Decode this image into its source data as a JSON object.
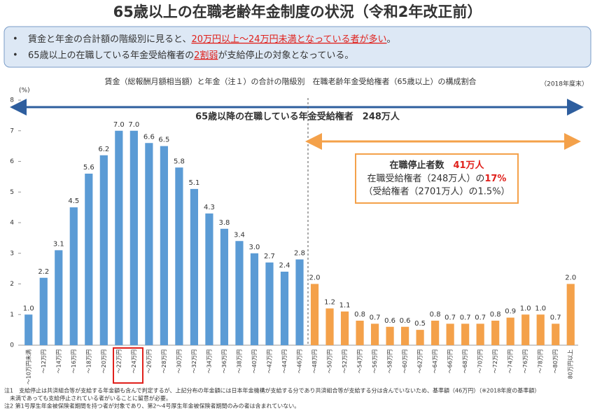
{
  "chart_data": {
    "type": "bar",
    "title": "65歳以上の在職老齢年金制度の状況（令和2年改正前）",
    "bullets": [
      [
        "賃金と年金の合計額の階級別に見ると、",
        "20万円以上～24万円未満となっている者が多い",
        "。"
      ],
      [
        "65歳以上の在職している年金受給権者の",
        "2割弱",
        "が支給停止の対象となっている。"
      ]
    ],
    "subtitle": "賃金（総報酬月額相当額）と年金（注１）の合計の階級別　在職老齢年金受給権者（65歳以上）の構成割合",
    "date_note": "（2018年度末）",
    "y_unit": "(%)",
    "arrow_label": "65歳以降の在職している年金受給権者　248万人",
    "box_lines": [
      [
        "在職停止者数　",
        "41万人"
      ],
      [
        "在職受給権者（248万人）の",
        "17%"
      ],
      [
        "（受給権者（2701万人）の1.5%）"
      ]
    ],
    "categories": [
      "～10万円未満",
      "～12万円",
      "～14万円",
      "～16万円",
      "～18万円",
      "～20万円",
      "～22万円",
      "～24万円",
      "～26万円",
      "～28万円",
      "～30万円",
      "～32万円",
      "～34万円",
      "～36万円",
      "～38万円",
      "～40万円",
      "～42万円",
      "～44万円",
      "～46万円",
      "～48万円",
      "～50万円",
      "～52万円",
      "～54万円",
      "～56万円",
      "～58万円",
      "～60万円",
      "～62万円",
      "～64万円",
      "～66万円",
      "～68万円",
      "～70万円",
      "～72万円",
      "～74万円",
      "～76万円",
      "～78万円",
      "～80万円",
      "80万円以上"
    ],
    "series": [
      {
        "color": "#5b9bd5",
        "values": [
          1.0,
          2.2,
          3.1,
          4.5,
          5.6,
          6.2,
          7.0,
          7.0,
          6.6,
          6.5,
          5.8,
          5.1,
          4.3,
          3.8,
          3.4,
          3.0,
          2.7,
          2.4,
          2.8,
          null,
          null,
          null,
          null,
          null,
          null,
          null,
          null,
          null,
          null,
          null,
          null,
          null,
          null,
          null,
          null,
          null,
          null
        ],
        "value_labels": [
          "1.0",
          "2.2",
          "3.1",
          "4.5",
          "5.6",
          "6.2",
          "7.0",
          "7.0",
          "6.6",
          "6.5",
          "5.8",
          "5.1",
          "4.3",
          "3.8",
          "3.4",
          "3.0",
          "2.7",
          "2.4",
          "2.8",
          null,
          null,
          null,
          null,
          null,
          null,
          null,
          null,
          null,
          null,
          null,
          null,
          null,
          null,
          null,
          null,
          null,
          null
        ]
      },
      {
        "color": "#f4a14a",
        "values": [
          null,
          null,
          null,
          null,
          null,
          null,
          null,
          null,
          null,
          null,
          null,
          null,
          null,
          null,
          null,
          null,
          null,
          null,
          null,
          2.0,
          1.2,
          1.1,
          0.8,
          0.7,
          0.6,
          0.6,
          0.5,
          0.8,
          0.7,
          0.7,
          0.7,
          0.8,
          0.9,
          1.0,
          1.0,
          0.7,
          2.0
        ],
        "value_labels": [
          null,
          null,
          null,
          null,
          null,
          null,
          null,
          null,
          null,
          null,
          null,
          null,
          null,
          null,
          null,
          null,
          null,
          null,
          null,
          "2.0",
          "1.2",
          "1.1",
          "0.8",
          "0.7",
          "0.6",
          "0.6",
          "0.5",
          "0.8",
          "0.7",
          "0.7",
          "0.7",
          "0.8",
          "0.9",
          "1.0",
          "1.0",
          "0.7",
          "2.0"
        ]
      }
    ],
    "ylim": [
      0,
      8
    ],
    "yticks": [
      0,
      1,
      2,
      3,
      4,
      5,
      6,
      7,
      8
    ],
    "notes": [
      "注1　支給停止は共済組合等が支給する年金額も含んで判定するが、上記分布の年金額には日本年金機構が支給する分であり共済組合等が支給する分は含んでいないため、基準額（46万円）（※2018年度の基準額）",
      "未満であっても支給停止されている者がいることに留意が必要。",
      "注2 第1号厚生年金被保険者期間を持つ者が対象であり、第2～4号厚生年金被保険者期間のみの者は含まれていない。"
    ]
  }
}
